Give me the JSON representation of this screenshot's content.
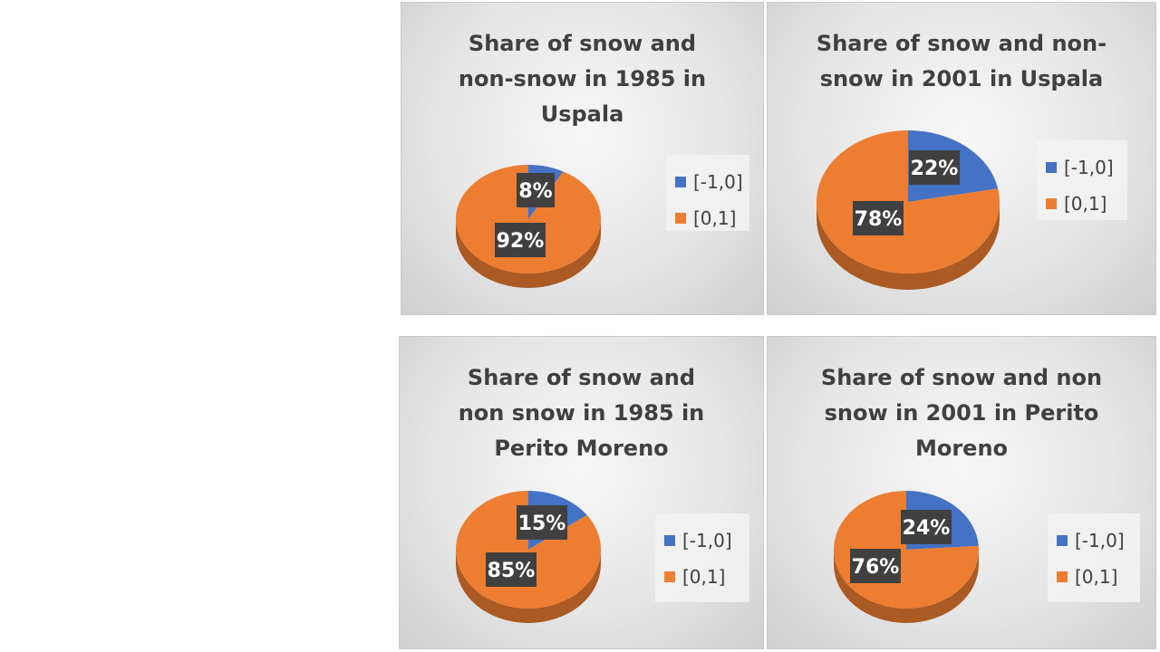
{
  "colors": {
    "snow": "#4472c4",
    "nonsnow": "#ed7d31",
    "label_bg": "#404040"
  },
  "legend_labels": [
    "[-1,0]",
    "[0,1]"
  ],
  "chart_data": [
    {
      "type": "pie",
      "title_lines": [
        "Share of snow and",
        "non-snow in 1985 in",
        "Uspala"
      ],
      "categories": [
        "[-1,0]",
        "[0,1]"
      ],
      "values": [
        8,
        92
      ],
      "data_labels": [
        "8%",
        "92%"
      ],
      "legend_position": "right"
    },
    {
      "type": "pie",
      "title_lines": [
        "Share of snow and non-",
        "snow in 2001 in Uspala"
      ],
      "categories": [
        "[-1,0]",
        "[0,1]"
      ],
      "values": [
        22,
        78
      ],
      "data_labels": [
        "22%",
        "78%"
      ],
      "legend_position": "right"
    },
    {
      "type": "pie",
      "title_lines": [
        "Share of snow and",
        "non snow in 1985 in",
        "Perito Moreno"
      ],
      "categories": [
        "[-1,0]",
        "[0,1]"
      ],
      "values": [
        15,
        85
      ],
      "data_labels": [
        "15%",
        "85%"
      ],
      "legend_position": "right"
    },
    {
      "type": "pie",
      "title_lines": [
        "Share of snow and non",
        "snow in 2001 in Perito",
        "Moreno"
      ],
      "categories": [
        "[-1,0]",
        "[0,1]"
      ],
      "values": [
        24,
        76
      ],
      "data_labels": [
        "24%",
        "76%"
      ],
      "legend_position": "right"
    }
  ]
}
